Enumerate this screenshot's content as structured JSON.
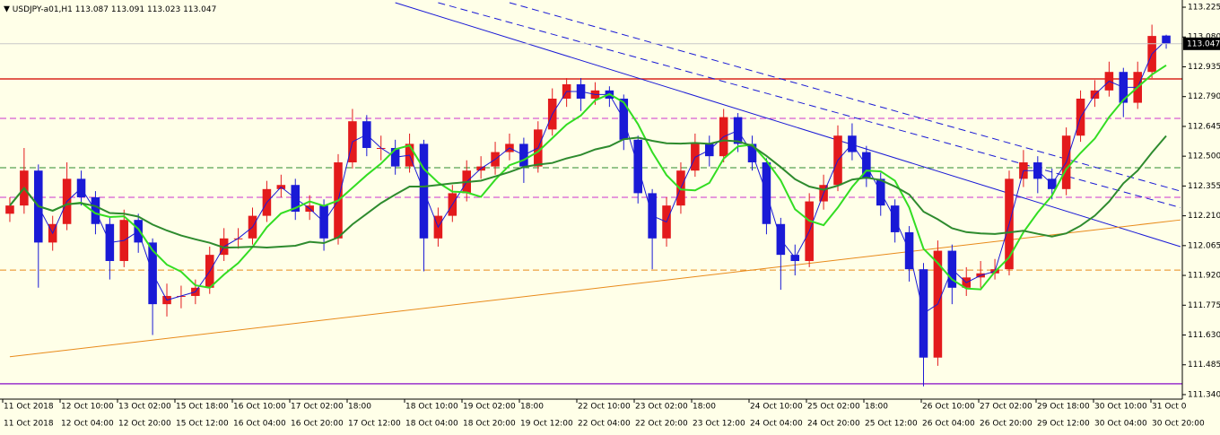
{
  "chart_data": {
    "type": "candlestick",
    "symbol": "USDJPY-a01,H1",
    "up_color": "#e31a1c",
    "down_color": "#1a1ad6",
    "ylim": [
      111.318,
      113.26
    ],
    "yticks": [
      113.225,
      {
        "value": 113.08,
        "label": "113.080"
      },
      112.935,
      {
        "value": 112.79,
        "label": "112.790"
      },
      112.645,
      {
        "value": 112.5,
        "label": "112.500"
      },
      112.355,
      {
        "value": 112.21,
        "label": "112.210"
      },
      112.065,
      {
        "value": 111.92,
        "label": "111.920"
      },
      111.775,
      {
        "value": 111.63,
        "label": "111.630"
      },
      111.485,
      {
        "value": 111.34,
        "label": "111.340"
      }
    ],
    "x_labels_top": [
      "11 Oct 2018",
      "12 Oct 10:00",
      "13 Oct 02:00",
      "15 Oct 18:00",
      "16 Oct 10:00",
      "17 Oct 02:00",
      "18:00",
      "18 Oct 10:00",
      "19 Oct 02:00",
      "18:00",
      "22 Oct 10:00",
      "23 Oct 02:00",
      "18:00",
      "24 Oct 10:00",
      "25 Oct 02:00",
      "18:00",
      "26 Oct 10:00",
      "27 Oct 02:00",
      "29 Oct 18:00",
      "30 Oct 10:00",
      "31 Oct 0"
    ],
    "x_labels_bottom": [
      "11 Oct 2018",
      "12 Oct 04:00",
      "12 Oct 20:00",
      "15 Oct 12:00",
      "16 Oct 04:00",
      "16 Oct 20:00",
      "17 Oct 12:00",
      "18 Oct 04:00",
      "18 Oct 20:00",
      "19 Oct 12:00",
      "22 Oct 04:00",
      "22 Oct 20:00",
      "23 Oct 12:00",
      "24 Oct 04:00",
      "24 Oct 20:00",
      "25 Oct 12:00",
      "26 Oct 04:00",
      "26 Oct 20:00",
      "29 Oct 12:00",
      "30 Oct 04:00",
      "30 Oct 20:00"
    ],
    "candles": [
      [
        112.22,
        112.3,
        112.18,
        112.26
      ],
      [
        112.26,
        112.54,
        112.22,
        112.43
      ],
      [
        112.43,
        112.46,
        111.86,
        112.08
      ],
      [
        112.08,
        112.21,
        112.04,
        112.17
      ],
      [
        112.17,
        112.47,
        112.14,
        112.39
      ],
      [
        112.39,
        112.43,
        112.26,
        112.3
      ],
      [
        112.3,
        112.33,
        112.12,
        112.17
      ],
      [
        112.17,
        112.2,
        111.9,
        111.99
      ],
      [
        111.99,
        112.24,
        111.96,
        112.19
      ],
      [
        112.19,
        112.22,
        112.03,
        112.08
      ],
      [
        112.08,
        112.1,
        111.63,
        111.78
      ],
      [
        111.78,
        111.88,
        111.72,
        111.82
      ],
      [
        111.82,
        111.87,
        111.76,
        111.82
      ],
      [
        111.82,
        111.9,
        111.78,
        111.86
      ],
      [
        111.86,
        112.06,
        111.83,
        112.02
      ],
      [
        112.02,
        112.15,
        111.99,
        112.1
      ],
      [
        112.1,
        112.15,
        112.05,
        112.1
      ],
      [
        112.1,
        112.25,
        112.07,
        112.21
      ],
      [
        112.21,
        112.38,
        112.18,
        112.34
      ],
      [
        112.34,
        112.41,
        112.3,
        112.36
      ],
      [
        112.36,
        112.39,
        112.19,
        112.23
      ],
      [
        112.23,
        112.31,
        112.19,
        112.26
      ],
      [
        112.26,
        112.29,
        112.04,
        112.1
      ],
      [
        112.1,
        112.51,
        112.07,
        112.47
      ],
      [
        112.47,
        112.73,
        112.44,
        112.67
      ],
      [
        112.67,
        112.7,
        112.5,
        112.54
      ],
      [
        112.54,
        112.6,
        112.48,
        112.54
      ],
      [
        112.54,
        112.58,
        112.41,
        112.45
      ],
      [
        112.45,
        112.61,
        112.42,
        112.56
      ],
      [
        112.56,
        112.58,
        111.94,
        112.1
      ],
      [
        112.1,
        112.25,
        112.06,
        112.21
      ],
      [
        112.21,
        112.36,
        112.18,
        112.32
      ],
      [
        112.32,
        112.48,
        112.28,
        112.43
      ],
      [
        112.43,
        112.5,
        112.39,
        112.45
      ],
      [
        112.45,
        112.57,
        112.41,
        112.52
      ],
      [
        112.52,
        112.61,
        112.48,
        112.56
      ],
      [
        112.56,
        112.59,
        112.37,
        112.45
      ],
      [
        112.45,
        112.67,
        112.42,
        112.63
      ],
      [
        112.63,
        112.83,
        112.6,
        112.78
      ],
      [
        112.78,
        112.88,
        112.74,
        112.85
      ],
      [
        112.85,
        112.88,
        112.72,
        112.78
      ],
      [
        112.78,
        112.86,
        112.75,
        112.82
      ],
      [
        112.82,
        112.84,
        112.74,
        112.78
      ],
      [
        112.78,
        112.8,
        112.53,
        112.58
      ],
      [
        112.58,
        112.6,
        112.27,
        112.32
      ],
      [
        112.32,
        112.34,
        111.95,
        112.1
      ],
      [
        112.1,
        112.3,
        112.06,
        112.26
      ],
      [
        112.26,
        112.47,
        112.22,
        112.43
      ],
      [
        112.43,
        112.61,
        112.4,
        112.56
      ],
      [
        112.56,
        112.6,
        112.45,
        112.5
      ],
      [
        112.5,
        112.73,
        112.47,
        112.69
      ],
      [
        112.69,
        112.71,
        112.52,
        112.56
      ],
      [
        112.56,
        112.6,
        112.43,
        112.47
      ],
      [
        112.47,
        112.49,
        112.12,
        112.17
      ],
      [
        112.17,
        112.2,
        111.85,
        112.02
      ],
      [
        112.02,
        112.07,
        111.92,
        111.99
      ],
      [
        111.99,
        112.32,
        111.96,
        112.28
      ],
      [
        112.28,
        112.41,
        112.24,
        112.36
      ],
      [
        112.36,
        112.65,
        112.33,
        112.6
      ],
      [
        112.6,
        112.66,
        112.48,
        112.52
      ],
      [
        112.52,
        112.55,
        112.35,
        112.39
      ],
      [
        112.39,
        112.42,
        112.21,
        112.26
      ],
      [
        112.26,
        112.29,
        112.08,
        112.13
      ],
      [
        112.13,
        112.16,
        111.89,
        111.95
      ],
      [
        111.95,
        111.98,
        111.38,
        111.52
      ],
      [
        111.52,
        112.09,
        111.48,
        112.04
      ],
      [
        112.04,
        112.07,
        111.78,
        111.86
      ],
      [
        111.86,
        111.96,
        111.82,
        111.91
      ],
      [
        111.91,
        111.99,
        111.86,
        111.93
      ],
      [
        111.93,
        112.0,
        111.9,
        111.95
      ],
      [
        111.95,
        112.43,
        111.92,
        112.39
      ],
      [
        112.39,
        112.53,
        112.35,
        112.47
      ],
      [
        112.47,
        112.5,
        112.32,
        112.39
      ],
      [
        112.39,
        112.44,
        112.29,
        112.34
      ],
      [
        112.34,
        112.64,
        112.31,
        112.6
      ],
      [
        112.6,
        112.82,
        112.57,
        112.78
      ],
      [
        112.78,
        112.87,
        112.74,
        112.82
      ],
      [
        112.82,
        112.96,
        112.79,
        112.91
      ],
      [
        112.91,
        112.93,
        112.69,
        112.76
      ],
      [
        112.76,
        112.96,
        112.73,
        112.91
      ],
      [
        112.91,
        113.14,
        112.88,
        113.085
      ],
      [
        113.087,
        113.091,
        113.023,
        113.047
      ]
    ],
    "moving_averages": [
      {
        "period": 2,
        "color": "#1a1ad6",
        "width": 1
      },
      {
        "period": 5,
        "color": "#33dd22",
        "width": 2
      },
      {
        "period": 14,
        "color": "#2e8b2e",
        "width": 2
      }
    ],
    "levels": [
      {
        "value": 112.876,
        "color": "#d9261c",
        "dashed": false
      },
      {
        "value": 112.684,
        "color": "#cc33cc",
        "dashed": true
      },
      {
        "value": 112.444,
        "color": "#2e8b2e",
        "dashed": true
      },
      {
        "value": 112.3,
        "color": "#cc33cc",
        "dashed": true
      },
      {
        "value": 111.946,
        "color": "#e88a1a",
        "dashed": true
      },
      {
        "value": 111.393,
        "color": "#9933cc",
        "dashed": false
      }
    ],
    "trendlines": [
      {
        "from": [
          27,
          113.247
        ],
        "to": [
          82,
          112.06
        ],
        "color": "#1a1ad6",
        "dashed": false
      },
      {
        "from": [
          30,
          113.247
        ],
        "to": [
          82,
          112.25
        ],
        "color": "#1a1ad6",
        "dashed": true
      },
      {
        "from": [
          35,
          113.247
        ],
        "to": [
          82,
          112.33
        ],
        "color": "#1a1ad6",
        "dashed": true
      },
      {
        "from": [
          0,
          111.524
        ],
        "to": [
          82,
          112.19
        ],
        "color": "#e88a1a",
        "dashed": false
      }
    ]
  }
}
